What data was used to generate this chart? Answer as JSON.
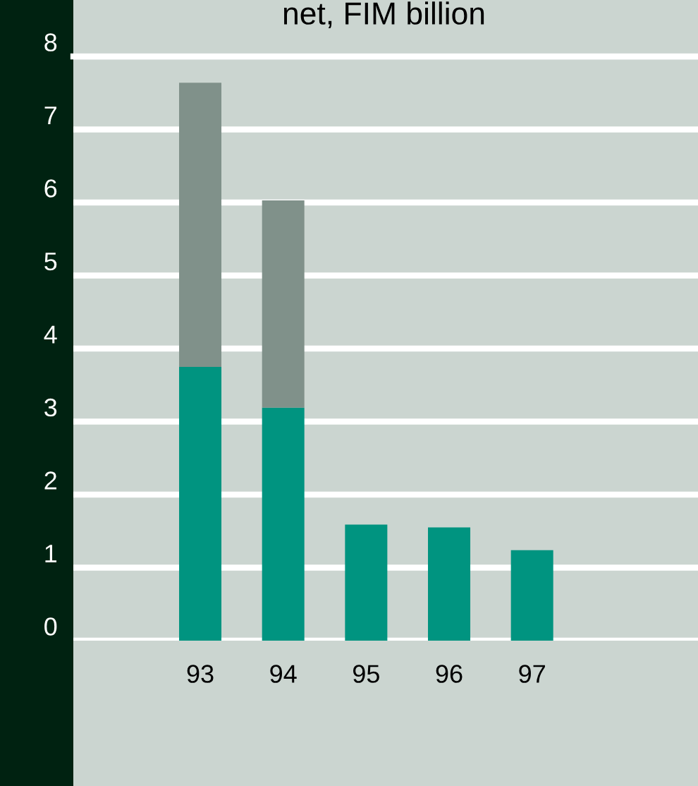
{
  "chart_data": {
    "type": "bar",
    "title": "net, FIM billion",
    "stacked": true,
    "categories": [
      "93",
      "94",
      "95",
      "96",
      "97"
    ],
    "series": [
      {
        "color": "#009480",
        "values": [
          3.75,
          3.19,
          1.59,
          1.55,
          1.24
        ]
      },
      {
        "color": "#80918a",
        "values": [
          3.89,
          2.84,
          null,
          null,
          null
        ]
      }
    ],
    "ylim": [
      0,
      8
    ],
    "yticks": [
      0,
      1,
      2,
      3,
      4,
      5,
      6,
      7,
      8
    ],
    "grid": "y",
    "legend": false
  }
}
